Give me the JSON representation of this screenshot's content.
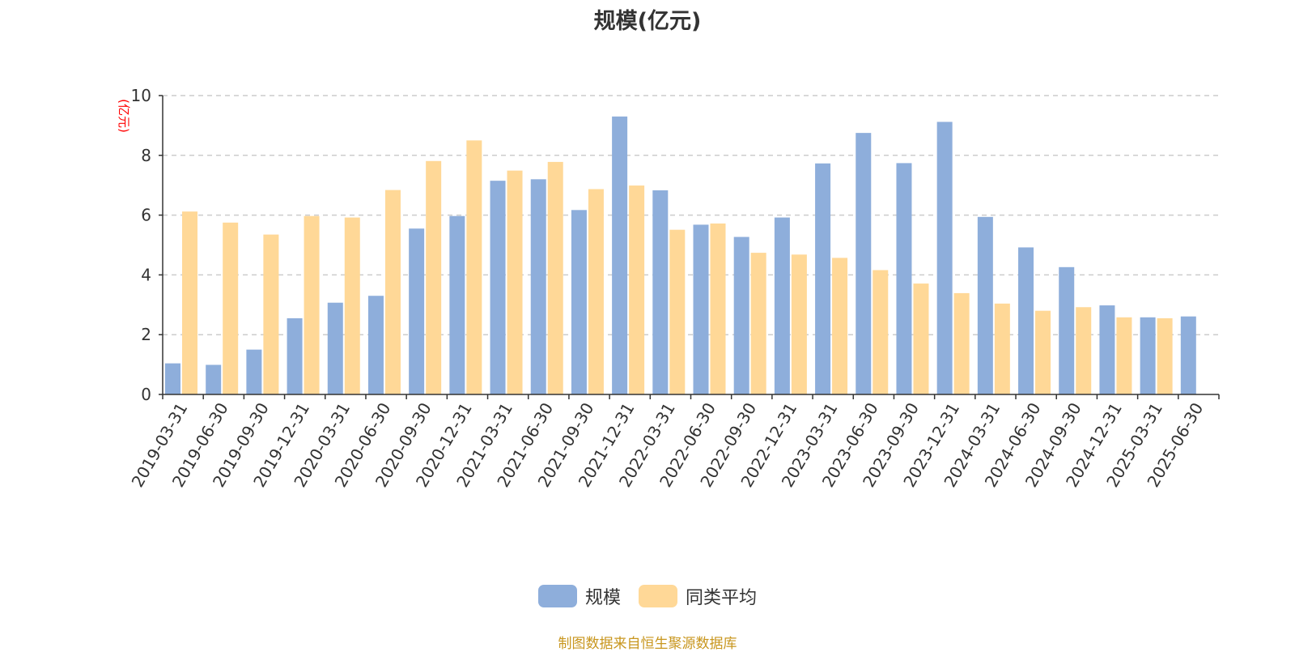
{
  "title": "规模(亿元)",
  "source_note": "制图数据来自恒生聚源数据库",
  "colors": {
    "series1": "#8eaedb",
    "series2": "#ffd897",
    "unit_label": "#ff0000",
    "source_note": "#c8961e",
    "axis": "#333333",
    "grid": "#cccccc"
  },
  "legend": {
    "items": [
      {
        "label": "规模"
      },
      {
        "label": "同类平均"
      }
    ]
  },
  "chart_data": {
    "type": "bar",
    "title": "规模(亿元)",
    "ylabel": "(亿元)",
    "xlabel": "",
    "ylim": [
      0,
      10
    ],
    "yticks": [
      0,
      2,
      4,
      6,
      8,
      10
    ],
    "grid": true,
    "legend_position": "bottom-center",
    "categories": [
      "2019-03-31",
      "2019-06-30",
      "2019-09-30",
      "2019-12-31",
      "2020-03-31",
      "2020-06-30",
      "2020-09-30",
      "2020-12-31",
      "2021-03-31",
      "2021-06-30",
      "2021-09-30",
      "2021-12-31",
      "2022-03-31",
      "2022-06-30",
      "2022-09-30",
      "2022-12-31",
      "2023-03-31",
      "2023-06-30",
      "2023-09-30",
      "2023-12-31",
      "2024-03-31",
      "2024-06-30",
      "2024-09-30",
      "2024-12-31",
      "2025-03-31",
      "2025-06-30"
    ],
    "series": [
      {
        "name": "规模",
        "values": [
          1.04,
          0.99,
          1.5,
          2.55,
          3.07,
          3.3,
          5.55,
          5.97,
          7.15,
          7.2,
          6.17,
          9.3,
          6.83,
          5.68,
          5.27,
          5.92,
          7.73,
          8.75,
          7.74,
          9.12,
          5.94,
          4.92,
          4.26,
          2.98,
          2.58,
          2.61
        ]
      },
      {
        "name": "同类平均",
        "values": [
          6.12,
          5.75,
          5.35,
          5.97,
          5.92,
          6.84,
          7.81,
          8.5,
          7.49,
          7.78,
          6.87,
          6.99,
          5.51,
          5.72,
          4.74,
          4.68,
          4.57,
          4.16,
          3.71,
          3.39,
          3.04,
          2.8,
          2.92,
          2.58,
          2.55,
          null
        ]
      }
    ]
  }
}
